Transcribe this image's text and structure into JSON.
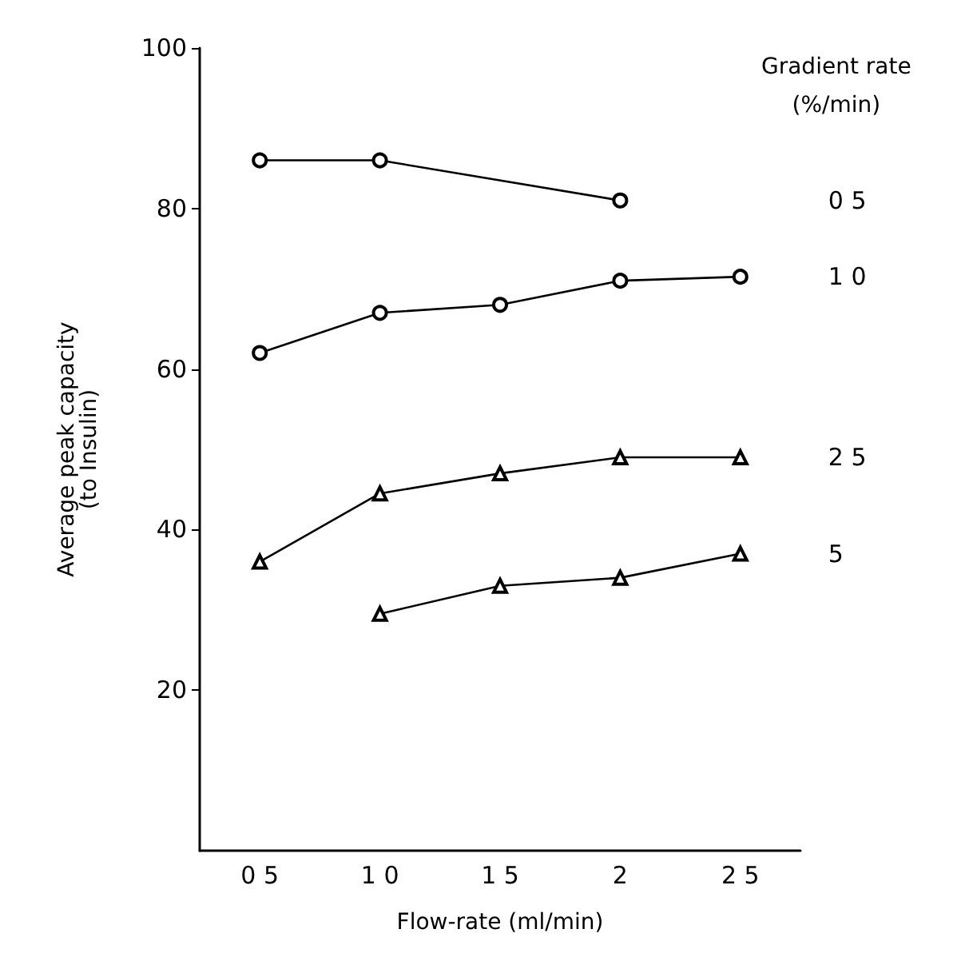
{
  "chart_data": {
    "type": "line",
    "xlabel": "Flow-rate (ml/min)",
    "ylabel": "Average peak capacity\n(to Insulin)",
    "legend_title": "Gradient rate\n(%/min)",
    "categories": [
      "0 5",
      "1 0",
      "1 5",
      "2",
      "2 5"
    ],
    "ylim": [
      0,
      100
    ],
    "yticks": [
      20,
      40,
      60,
      80,
      100
    ],
    "series": [
      {
        "name": "0 5",
        "color": "#000000",
        "marker": "circle",
        "values": [
          86,
          86,
          null,
          81,
          null
        ]
      },
      {
        "name": "1 0",
        "color": "#000000",
        "marker": "circle",
        "values": [
          62,
          67,
          68,
          71,
          71.5
        ]
      },
      {
        "name": "2 5",
        "color": "#000000",
        "marker": "triangle",
        "values": [
          36,
          44.5,
          47,
          49,
          49
        ]
      },
      {
        "name": "5",
        "color": "#000000",
        "marker": "triangle",
        "values": [
          null,
          29.5,
          33,
          34,
          37
        ]
      }
    ]
  }
}
